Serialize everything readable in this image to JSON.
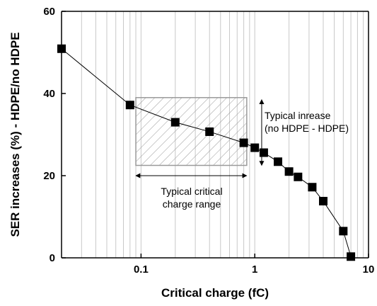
{
  "chart_data": {
    "type": "scatter",
    "xlabel": "Critical charge (fC)",
    "ylabel": "SER increases (%) - HDPE/no HDPE",
    "xscale": "log",
    "xlim": [
      0.02,
      10
    ],
    "ylim": [
      0,
      60
    ],
    "xticks": [
      0.1,
      1,
      10
    ],
    "xtick_labels": [
      "0.1",
      "1",
      "10"
    ],
    "yticks": [
      0,
      20,
      40,
      60
    ],
    "ytick_labels": [
      "0",
      "20",
      "40",
      "60"
    ],
    "grid": "vertical minor and major grid lines",
    "series": [
      {
        "x": [
          0.02,
          0.08,
          0.2,
          0.4,
          0.8,
          1.0,
          1.2,
          1.6,
          2.0,
          2.4,
          3.2,
          4.0,
          6.0,
          7.0
        ],
        "y": [
          50.9,
          37.2,
          33.0,
          30.7,
          28.0,
          26.8,
          25.6,
          23.4,
          21.0,
          19.7,
          17.2,
          13.8,
          6.5,
          0.3
        ],
        "marker": "square",
        "color": "#000000"
      }
    ],
    "shaded_region": {
      "x": [
        0.09,
        0.85
      ],
      "y": [
        22.5,
        39.0
      ],
      "fill": "hatched",
      "color": "#999999"
    },
    "annotations": [
      {
        "text_lines": [
          "Typical inrease",
          "(no HDPE - HDPE)"
        ],
        "arrow": "vertical",
        "arrow_x": 1.15,
        "arrow_y": [
          22.5,
          38.5
        ]
      },
      {
        "text_lines": [
          "Typical critical",
          "charge range"
        ],
        "arrow": "horizontal",
        "arrow_x": [
          0.09,
          0.85
        ],
        "arrow_y": 20.0
      }
    ]
  }
}
